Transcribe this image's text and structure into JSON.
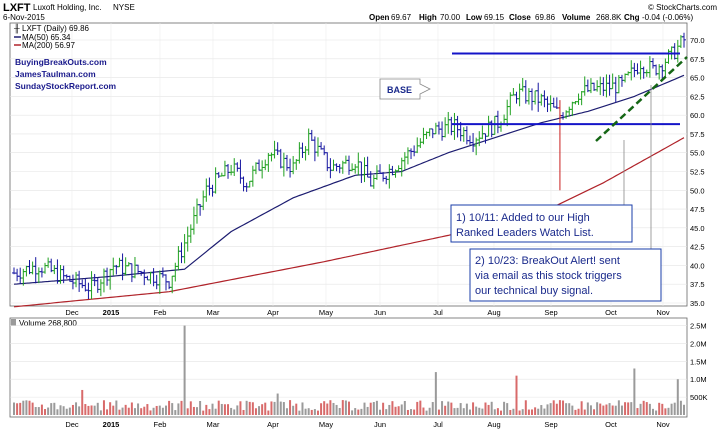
{
  "header": {
    "symbol": "LXFT",
    "company": "Luxoft Holding, Inc.",
    "exchange": "NYSE",
    "date": "6-Nov-2015",
    "open_label": "Open",
    "open": "69.67",
    "high_label": "High",
    "high": "70.00",
    "low_label": "Low",
    "low": "69.15",
    "close_label": "Close",
    "close": "69.86",
    "volume_label": "Volume",
    "volume": "268.8K",
    "chg_label": "Chg",
    "chg": "-0.04 (-0.06%)",
    "watermark": "© StockCharts.com"
  },
  "legend": {
    "price": "LXFT (Daily) 69.86",
    "ma50": "MA(50) 65.34",
    "ma200": "MA(200) 56.97",
    "volume": "Volume 268,800"
  },
  "sites": [
    "BuyingBreakOuts.com",
    "JamesTaulman.com",
    "SundayStockReport.com"
  ],
  "annotations": {
    "base": "BASE",
    "note1_line1": "1) 10/11: Added to our High",
    "note1_line2": "Ranked Leaders Watch List.",
    "note2_line1": "2) 10/23: BreakOut Alert! sent",
    "note2_line2": "via email as this stock triggers",
    "note2_line3": "our technical buy signal."
  },
  "colors": {
    "up": "#1fa01f",
    "down": "#1515a0",
    "flat": "#111111",
    "ma50": "#1c1c70",
    "ma200": "#b0232a",
    "base_lines": "#1414c8",
    "trendline": "#156615",
    "note_border": "#1a3ea8",
    "note_text": "#1a2a8c",
    "vol_up": "#9a9a9a",
    "vol_down": "#d86a6a"
  },
  "chart_data": {
    "type": "ohlc",
    "y_ticks": [
      "70.0",
      "67.5",
      "65.0",
      "62.5",
      "60.0",
      "57.5",
      "55.0",
      "52.5",
      "50.0",
      "47.5",
      "45.0",
      "42.5",
      "40.0",
      "37.5",
      "35.0"
    ],
    "volume_ticks": [
      "2.5M",
      "2.0M",
      "1.5M",
      "1.0M",
      "500K"
    ],
    "x_labels": [
      "Dec",
      "2015",
      "Feb",
      "Mar",
      "Apr",
      "May",
      "Jun",
      "Jul",
      "Aug",
      "Sep",
      "Oct",
      "Nov"
    ],
    "ylim": [
      35,
      72
    ],
    "price_keypoints": [
      [
        0,
        39
      ],
      [
        8,
        40
      ],
      [
        18,
        38
      ],
      [
        25,
        37
      ],
      [
        32,
        40
      ],
      [
        42,
        39
      ],
      [
        50,
        38
      ],
      [
        55,
        43
      ],
      [
        62,
        50
      ],
      [
        70,
        53
      ],
      [
        75,
        51
      ],
      [
        82,
        55
      ],
      [
        90,
        53
      ],
      [
        95,
        57
      ],
      [
        102,
        53
      ],
      [
        110,
        54
      ],
      [
        115,
        51
      ],
      [
        122,
        53
      ],
      [
        130,
        56
      ],
      [
        135,
        58
      ],
      [
        142,
        58.5
      ],
      [
        148,
        57
      ],
      [
        156,
        59
      ],
      [
        162,
        63
      ],
      [
        170,
        62
      ],
      [
        176,
        60
      ],
      [
        182,
        63
      ],
      [
        188,
        63.5
      ],
      [
        196,
        64
      ],
      [
        202,
        67
      ],
      [
        206,
        66
      ],
      [
        212,
        68
      ],
      [
        216,
        70
      ]
    ],
    "ma50_keypoints": [
      [
        0,
        37.5
      ],
      [
        30,
        38.5
      ],
      [
        55,
        39.5
      ],
      [
        70,
        44.5
      ],
      [
        90,
        49
      ],
      [
        110,
        52
      ],
      [
        125,
        52.5
      ],
      [
        140,
        55
      ],
      [
        155,
        57
      ],
      [
        170,
        59
      ],
      [
        185,
        60.5
      ],
      [
        200,
        62.5
      ],
      [
        216,
        65.3
      ]
    ],
    "ma200_keypoints": [
      [
        0,
        34.5
      ],
      [
        50,
        36.5
      ],
      [
        100,
        40.5
      ],
      [
        140,
        44
      ],
      [
        170,
        47
      ],
      [
        190,
        51
      ],
      [
        216,
        57
      ]
    ],
    "base_levels": [
      68.2,
      58.8
    ],
    "volume_spikes": [
      [
        55,
        2.5
      ],
      [
        136,
        1.2
      ],
      [
        162,
        1.1
      ],
      [
        200,
        1.3
      ],
      [
        214,
        1.0
      ],
      [
        22,
        0.7
      ],
      [
        85,
        0.6
      ]
    ]
  }
}
